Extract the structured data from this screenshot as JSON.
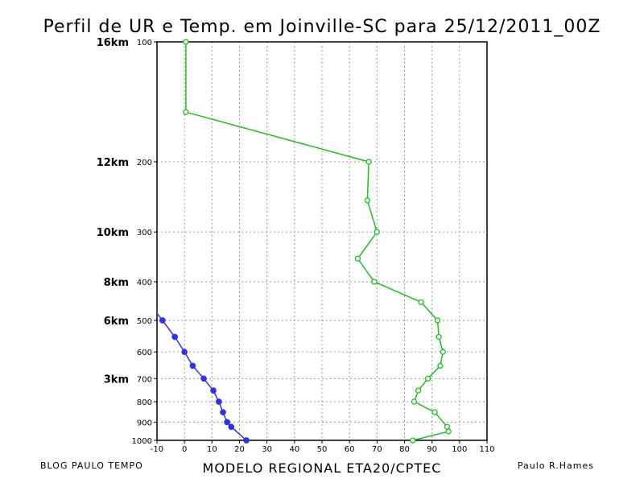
{
  "chart_data": {
    "type": "line",
    "title": "Perfil de UR e Temp. em Joinville-SC para 25/12/2011_00Z",
    "xlabel": "MODELO REGIONAL ETA20/CPTEC",
    "footer_left": "BLOG PAULO TEMPO",
    "footer_right": "Paulo R.Hames",
    "xlim": [
      -10,
      110
    ],
    "ylim": [
      1000,
      100
    ],
    "y_scale": "log",
    "grid": true,
    "x_ticks": [
      -10,
      0,
      10,
      20,
      30,
      40,
      50,
      60,
      70,
      80,
      90,
      100,
      110
    ],
    "x_tick_labels": [
      "-10",
      "0",
      "10",
      "20",
      "30",
      "40",
      "50",
      "60",
      "70",
      "80",
      "90",
      "100",
      "110"
    ],
    "y_ticks": [
      100,
      200,
      300,
      400,
      500,
      600,
      700,
      800,
      900,
      1000
    ],
    "y_tick_labels": [
      "100",
      "200",
      "300",
      "400",
      "500",
      "600",
      "700",
      "800",
      "900",
      "1000"
    ],
    "altitude_labels": [
      {
        "text": "16km",
        "pressure": 100
      },
      {
        "text": "12km",
        "pressure": 200
      },
      {
        "text": "10km",
        "pressure": 300
      },
      {
        "text": "8km",
        "pressure": 400
      },
      {
        "text": "6km",
        "pressure": 500
      },
      {
        "text": "3km",
        "pressure": 700
      }
    ],
    "series": [
      {
        "name": "UR",
        "color": "#22bb22",
        "marker": "open-circle",
        "points": [
          {
            "x": 83,
            "y": 1000
          },
          {
            "x": 96,
            "y": 950
          },
          {
            "x": 95.5,
            "y": 925
          },
          {
            "x": 91,
            "y": 850
          },
          {
            "x": 83.5,
            "y": 800
          },
          {
            "x": 85,
            "y": 750
          },
          {
            "x": 88.5,
            "y": 700
          },
          {
            "x": 93,
            "y": 650
          },
          {
            "x": 94,
            "y": 600
          },
          {
            "x": 92.5,
            "y": 550
          },
          {
            "x": 92,
            "y": 500
          },
          {
            "x": 86,
            "y": 450
          },
          {
            "x": 69,
            "y": 400
          },
          {
            "x": 63,
            "y": 350
          },
          {
            "x": 70,
            "y": 300
          },
          {
            "x": 66.5,
            "y": 250
          },
          {
            "x": 67,
            "y": 200
          },
          {
            "x": 0.5,
            "y": 150
          },
          {
            "x": 0.5,
            "y": 100
          }
        ]
      },
      {
        "name": "Temp",
        "color": "#3333dd",
        "marker": "filled-circle",
        "points": [
          {
            "x": 22.5,
            "y": 1000
          },
          {
            "x": 17,
            "y": 925
          },
          {
            "x": 15.5,
            "y": 900
          },
          {
            "x": 14,
            "y": 850
          },
          {
            "x": 12.5,
            "y": 800
          },
          {
            "x": 10.5,
            "y": 750
          },
          {
            "x": 7,
            "y": 700
          },
          {
            "x": 3,
            "y": 650
          },
          {
            "x": 0,
            "y": 600
          },
          {
            "x": -3.5,
            "y": 550
          },
          {
            "x": -8,
            "y": 500
          },
          {
            "x": -10,
            "y": 480
          }
        ]
      }
    ]
  }
}
